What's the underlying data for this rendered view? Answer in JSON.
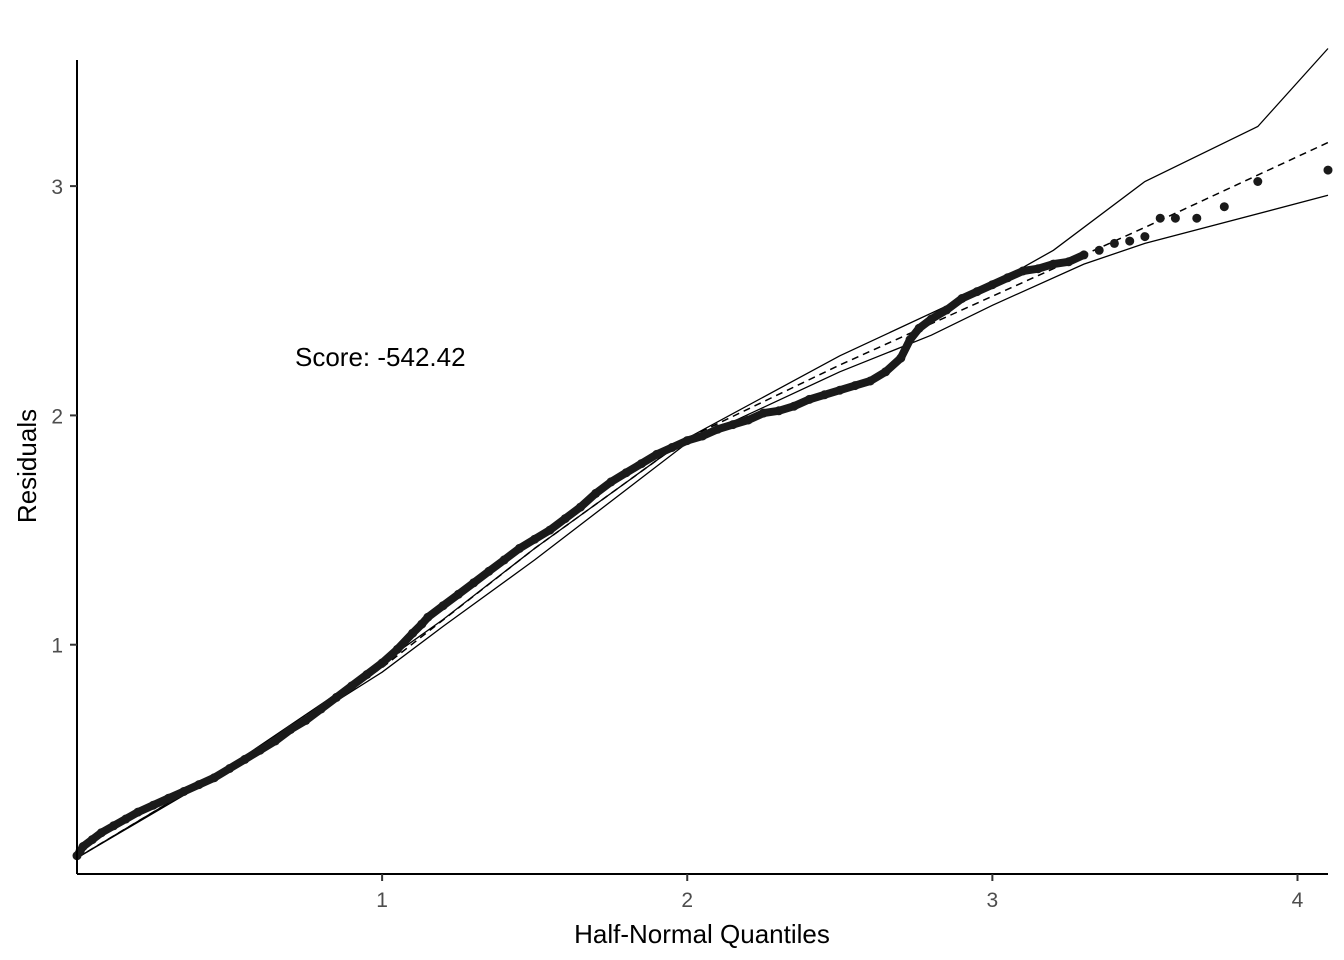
{
  "chart_data": {
    "type": "scatter",
    "title": "",
    "xlabel": "Half-Normal Quantiles",
    "ylabel": "Residuals",
    "annotation": "Score: -542.42",
    "xlim": [
      0.0,
      4.1
    ],
    "ylim": [
      0.0,
      3.55
    ],
    "x_ticks": [
      1,
      2,
      3,
      4
    ],
    "x_tick_labels": [
      "1",
      "2",
      "3",
      "4"
    ],
    "y_ticks": [
      1,
      2,
      3
    ],
    "y_tick_labels": [
      "1",
      "2",
      "3"
    ],
    "grid": false,
    "legend": "none",
    "colors": {
      "points": "#1a1a1a",
      "lines": "#000000",
      "tick_text": "#4d4d4d"
    },
    "series": [
      {
        "kind": "points",
        "x": [
          0.0,
          0.01,
          0.02,
          0.05,
          0.08,
          0.12,
          0.16,
          0.2,
          0.25,
          0.3,
          0.35,
          0.4,
          0.45,
          0.5,
          0.55,
          0.6,
          0.65,
          0.7,
          0.75,
          0.8,
          0.85,
          0.9,
          0.95,
          1.0,
          1.05,
          1.1,
          1.13,
          1.15,
          1.2,
          1.25,
          1.3,
          1.35,
          1.4,
          1.45,
          1.5,
          1.55,
          1.6,
          1.65,
          1.7,
          1.75,
          1.8,
          1.85,
          1.9,
          1.95,
          2.0,
          2.05,
          2.1,
          2.15,
          2.2,
          2.25,
          2.3,
          2.35,
          2.4,
          2.45,
          2.5,
          2.55,
          2.6,
          2.65,
          2.7,
          2.73,
          2.76,
          2.8,
          2.85,
          2.9,
          2.95,
          3.0,
          3.05,
          3.1,
          3.15,
          3.2,
          3.25,
          3.3,
          3.35,
          3.4,
          3.45,
          3.5,
          3.55,
          3.6,
          3.67,
          3.76,
          3.87,
          4.1
        ],
        "y": [
          0.08,
          0.1,
          0.12,
          0.15,
          0.18,
          0.21,
          0.24,
          0.27,
          0.3,
          0.33,
          0.36,
          0.39,
          0.42,
          0.46,
          0.5,
          0.54,
          0.58,
          0.63,
          0.67,
          0.72,
          0.77,
          0.82,
          0.87,
          0.92,
          0.98,
          1.05,
          1.09,
          1.12,
          1.17,
          1.22,
          1.27,
          1.32,
          1.37,
          1.42,
          1.46,
          1.5,
          1.55,
          1.6,
          1.66,
          1.71,
          1.75,
          1.79,
          1.83,
          1.86,
          1.89,
          1.91,
          1.94,
          1.96,
          1.98,
          2.01,
          2.02,
          2.04,
          2.07,
          2.09,
          2.11,
          2.13,
          2.15,
          2.19,
          2.25,
          2.33,
          2.38,
          2.42,
          2.46,
          2.51,
          2.54,
          2.57,
          2.6,
          2.63,
          2.64,
          2.66,
          2.67,
          2.7,
          2.72,
          2.75,
          2.76,
          2.78,
          2.86,
          2.86,
          2.86,
          2.91,
          3.02,
          3.07
        ]
      },
      {
        "kind": "reference-dashed",
        "x": [
          0.0,
          0.5,
          1.0,
          1.5,
          2.0,
          2.5,
          3.0,
          3.5,
          4.1
        ],
        "y": [
          0.07,
          0.47,
          0.9,
          1.42,
          1.9,
          2.22,
          2.52,
          2.82,
          3.19
        ]
      },
      {
        "kind": "envelope-upper",
        "x": [
          0.0,
          0.5,
          1.0,
          1.2,
          1.5,
          2.0,
          2.5,
          3.0,
          3.2,
          3.5,
          3.87,
          4.1
        ],
        "y": [
          0.07,
          0.47,
          0.92,
          1.11,
          1.42,
          1.9,
          2.26,
          2.57,
          2.72,
          3.02,
          3.26,
          3.6
        ]
      },
      {
        "kind": "envelope-lower",
        "x": [
          0.0,
          0.5,
          1.0,
          1.2,
          1.5,
          2.0,
          2.5,
          2.8,
          3.0,
          3.3,
          3.5,
          4.1
        ],
        "y": [
          0.07,
          0.46,
          0.88,
          1.08,
          1.37,
          1.88,
          2.19,
          2.35,
          2.48,
          2.66,
          2.75,
          2.96
        ]
      }
    ]
  }
}
